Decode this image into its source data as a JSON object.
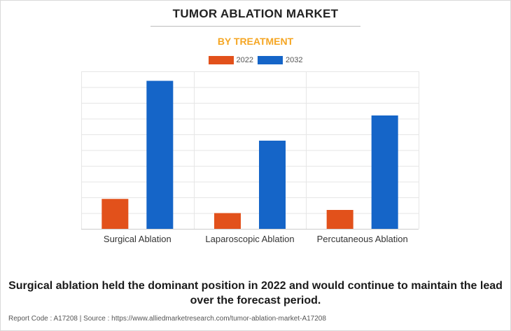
{
  "title": "TUMOR ABLATION MARKET",
  "subtitle": "BY TREATMENT",
  "chart_data": {
    "type": "bar",
    "categories": [
      "Surgical Ablation",
      "Laparoscopic Ablation",
      "Percutaneous Ablation"
    ],
    "series": [
      {
        "name": "2022",
        "values": [
          0.19,
          0.1,
          0.12
        ],
        "color": "#e2511b"
      },
      {
        "name": "2032",
        "values": [
          0.94,
          0.56,
          0.72
        ],
        "color": "#1565c8"
      }
    ],
    "ylim": [
      0,
      1
    ],
    "y_tick_labels_shown": false,
    "grid": true,
    "legend": "top-center",
    "xlabel": "",
    "ylabel": ""
  },
  "caption": "Surgical ablation held the dominant position in 2022 and would continue to maintain the lead over the forecast period.",
  "footer": "Report Code : A17208  |  Source : https://www.alliedmarketresearch.com/tumor-ablation-market-A17208"
}
